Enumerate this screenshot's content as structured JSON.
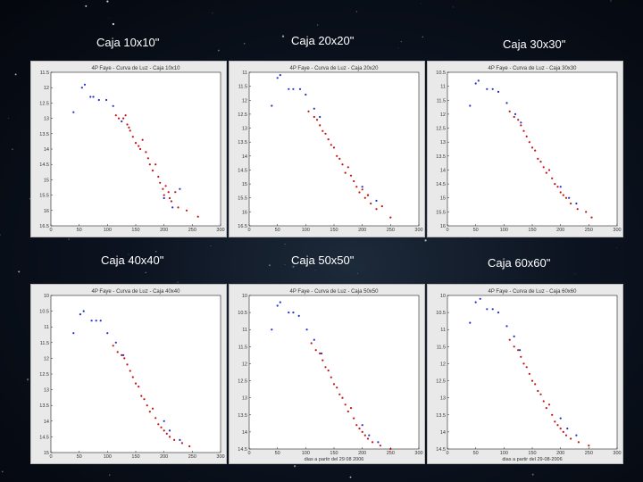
{
  "colors": {
    "blue": "#1f2fd0",
    "red": "#c41212",
    "axes_bg": "#ffffff",
    "frame_bg": "#e9e9e9"
  },
  "chart_data": [
    {
      "type": "scatter",
      "caption": "Caja 10x10\"",
      "title": "4P Faye - Curva de Luz - Caja 10x10",
      "xlabel": "",
      "xlim": [
        0,
        300
      ],
      "ylim": [
        11.5,
        16.5
      ],
      "y_inverted": true,
      "xticks": [
        0,
        50,
        100,
        150,
        200,
        250,
        300
      ],
      "yticks": [
        11.5,
        12,
        12.5,
        13,
        13.5,
        14,
        14.5,
        15,
        15.5,
        16,
        16.5
      ],
      "series": [
        {
          "color": "blue",
          "points": [
            [
              40,
              12.8
            ],
            [
              55,
              12.0
            ],
            [
              60,
              11.9
            ],
            [
              70,
              12.3
            ],
            [
              75,
              12.3
            ],
            [
              85,
              12.4
            ],
            [
              98,
              12.4
            ],
            [
              110,
              12.6
            ],
            [
              125,
              13.1
            ],
            [
              200,
              15.6
            ],
            [
              215,
              15.9
            ],
            [
              228,
              15.3
            ]
          ]
        },
        {
          "color": "red",
          "points": [
            [
              115,
              12.9
            ],
            [
              120,
              13.0
            ],
            [
              128,
              13.0
            ],
            [
              132,
              12.9
            ],
            [
              135,
              13.2
            ],
            [
              138,
              13.3
            ],
            [
              140,
              13.4
            ],
            [
              145,
              13.6
            ],
            [
              150,
              13.8
            ],
            [
              155,
              13.9
            ],
            [
              158,
              14.0
            ],
            [
              162,
              13.7
            ],
            [
              168,
              14.1
            ],
            [
              172,
              14.3
            ],
            [
              175,
              14.5
            ],
            [
              180,
              14.7
            ],
            [
              185,
              14.5
            ],
            [
              190,
              14.9
            ],
            [
              193,
              15.1
            ],
            [
              198,
              15.3
            ],
            [
              200,
              15.5
            ],
            [
              203,
              15.2
            ],
            [
              208,
              15.4
            ],
            [
              210,
              15.6
            ],
            [
              213,
              15.7
            ],
            [
              220,
              15.4
            ],
            [
              225,
              15.9
            ],
            [
              240,
              16.0
            ],
            [
              260,
              16.2
            ]
          ]
        }
      ]
    },
    {
      "type": "scatter",
      "caption": "Caja 20x20\"",
      "title": "4P Faye - Curva de Luz - Caja 20x20",
      "xlabel": "",
      "xlim": [
        0,
        300
      ],
      "ylim": [
        11,
        16.5
      ],
      "y_inverted": true,
      "xticks": [
        0,
        50,
        100,
        150,
        200,
        250,
        300
      ],
      "yticks": [
        11,
        11.5,
        12,
        12.5,
        13,
        13.5,
        14,
        14.5,
        15,
        15.5,
        16,
        16.5
      ],
      "series": [
        {
          "color": "blue",
          "points": [
            [
              40,
              12.2
            ],
            [
              50,
              11.2
            ],
            [
              55,
              11.1
            ],
            [
              70,
              11.6
            ],
            [
              78,
              11.6
            ],
            [
              90,
              11.6
            ],
            [
              100,
              11.8
            ],
            [
              115,
              12.3
            ],
            [
              125,
              12.6
            ],
            [
              200,
              15.1
            ],
            [
              210,
              15.4
            ],
            [
              225,
              15.6
            ]
          ]
        },
        {
          "color": "red",
          "points": [
            [
              105,
              12.4
            ],
            [
              115,
              12.6
            ],
            [
              120,
              12.7
            ],
            [
              125,
              12.9
            ],
            [
              130,
              13.1
            ],
            [
              135,
              13.2
            ],
            [
              140,
              13.4
            ],
            [
              145,
              13.6
            ],
            [
              150,
              13.7
            ],
            [
              155,
              14.0
            ],
            [
              160,
              14.1
            ],
            [
              165,
              14.3
            ],
            [
              170,
              14.6
            ],
            [
              175,
              14.4
            ],
            [
              180,
              14.7
            ],
            [
              185,
              14.9
            ],
            [
              190,
              15.1
            ],
            [
              195,
              15.3
            ],
            [
              200,
              15.2
            ],
            [
              205,
              15.5
            ],
            [
              210,
              15.4
            ],
            [
              215,
              15.7
            ],
            [
              225,
              15.9
            ],
            [
              235,
              15.8
            ],
            [
              250,
              16.2
            ]
          ]
        }
      ]
    },
    {
      "type": "scatter",
      "caption": "Caja 30x30\"",
      "title": "4P Faye - Curva de Luz - Caja 30x30",
      "xlabel": "",
      "xlim": [
        0,
        300
      ],
      "ylim": [
        10.5,
        16
      ],
      "y_inverted": true,
      "xticks": [
        0,
        50,
        100,
        150,
        200,
        250,
        300
      ],
      "yticks": [
        10.5,
        11,
        11.5,
        12,
        12.5,
        13,
        13.5,
        14,
        14.5,
        15,
        15.5,
        16
      ],
      "series": [
        {
          "color": "blue",
          "points": [
            [
              40,
              11.7
            ],
            [
              50,
              10.9
            ],
            [
              55,
              10.8
            ],
            [
              70,
              11.1
            ],
            [
              80,
              11.1
            ],
            [
              90,
              11.2
            ],
            [
              105,
              11.6
            ],
            [
              120,
              12.0
            ],
            [
              130,
              12.3
            ],
            [
              200,
              14.6
            ],
            [
              215,
              15.0
            ],
            [
              228,
              15.2
            ]
          ]
        },
        {
          "color": "red",
          "points": [
            [
              110,
              11.9
            ],
            [
              118,
              12.1
            ],
            [
              125,
              12.2
            ],
            [
              130,
              12.4
            ],
            [
              135,
              12.6
            ],
            [
              140,
              12.8
            ],
            [
              145,
              13.0
            ],
            [
              150,
              13.2
            ],
            [
              155,
              13.3
            ],
            [
              160,
              13.6
            ],
            [
              165,
              13.7
            ],
            [
              170,
              13.9
            ],
            [
              175,
              14.1
            ],
            [
              180,
              14.0
            ],
            [
              185,
              14.3
            ],
            [
              190,
              14.5
            ],
            [
              195,
              14.6
            ],
            [
              200,
              14.8
            ],
            [
              205,
              14.9
            ],
            [
              210,
              15.0
            ],
            [
              218,
              15.2
            ],
            [
              230,
              15.4
            ],
            [
              245,
              15.5
            ],
            [
              255,
              15.7
            ]
          ]
        }
      ]
    },
    {
      "type": "scatter",
      "caption": "Caja 40x40\"",
      "title": "4P Faye - Curva de Luz - Caja 40x40",
      "xlabel": "",
      "xlim": [
        0,
        300
      ],
      "ylim": [
        10,
        15
      ],
      "y_inverted": true,
      "xticks": [
        0,
        50,
        100,
        150,
        200,
        250,
        300
      ],
      "yticks": [
        10,
        10.5,
        11,
        11.5,
        12,
        12.5,
        13,
        13.5,
        14,
        14.5,
        15
      ],
      "series": [
        {
          "color": "blue",
          "points": [
            [
              40,
              11.2
            ],
            [
              52,
              10.6
            ],
            [
              58,
              10.5
            ],
            [
              72,
              10.8
            ],
            [
              80,
              10.8
            ],
            [
              88,
              10.8
            ],
            [
              100,
              11.2
            ],
            [
              115,
              11.5
            ],
            [
              128,
              11.9
            ],
            [
              200,
              14.0
            ],
            [
              210,
              14.3
            ],
            [
              228,
              14.6
            ]
          ]
        },
        {
          "color": "red",
          "points": [
            [
              110,
              11.6
            ],
            [
              118,
              11.8
            ],
            [
              125,
              11.9
            ],
            [
              130,
              12.0
            ],
            [
              135,
              12.2
            ],
            [
              140,
              12.4
            ],
            [
              145,
              12.6
            ],
            [
              150,
              12.8
            ],
            [
              155,
              12.9
            ],
            [
              160,
              13.2
            ],
            [
              165,
              13.3
            ],
            [
              170,
              13.5
            ],
            [
              175,
              13.7
            ],
            [
              180,
              13.6
            ],
            [
              185,
              13.9
            ],
            [
              190,
              14.1
            ],
            [
              195,
              14.2
            ],
            [
              200,
              14.3
            ],
            [
              205,
              14.4
            ],
            [
              210,
              14.5
            ],
            [
              218,
              14.6
            ],
            [
              232,
              14.7
            ],
            [
              245,
              14.8
            ]
          ]
        }
      ]
    },
    {
      "type": "scatter",
      "caption": "Caja 50x50\"",
      "title": "4P Faye - Curva de Luz - Caja 50x50",
      "xlabel": "dias a partir del 29 08 2006",
      "xlim": [
        0,
        300
      ],
      "ylim": [
        10,
        14.5
      ],
      "y_inverted": true,
      "xticks": [
        0,
        50,
        100,
        150,
        200,
        250,
        300
      ],
      "yticks": [
        10,
        10.5,
        11,
        11.5,
        12,
        12.5,
        13,
        13.5,
        14,
        14.5
      ],
      "series": [
        {
          "color": "blue",
          "points": [
            [
              40,
              11.0
            ],
            [
              50,
              10.3
            ],
            [
              55,
              10.2
            ],
            [
              70,
              10.5
            ],
            [
              78,
              10.5
            ],
            [
              88,
              10.6
            ],
            [
              102,
              11.0
            ],
            [
              115,
              11.3
            ],
            [
              128,
              11.7
            ],
            [
              200,
              13.8
            ],
            [
              212,
              14.1
            ],
            [
              228,
              14.3
            ]
          ]
        },
        {
          "color": "red",
          "points": [
            [
              110,
              11.4
            ],
            [
              118,
              11.6
            ],
            [
              125,
              11.7
            ],
            [
              130,
              11.9
            ],
            [
              135,
              12.1
            ],
            [
              140,
              12.2
            ],
            [
              145,
              12.4
            ],
            [
              150,
              12.6
            ],
            [
              155,
              12.7
            ],
            [
              160,
              12.9
            ],
            [
              165,
              13.0
            ],
            [
              170,
              13.2
            ],
            [
              175,
              13.4
            ],
            [
              180,
              13.3
            ],
            [
              185,
              13.6
            ],
            [
              190,
              13.8
            ],
            [
              195,
              13.9
            ],
            [
              200,
              14.0
            ],
            [
              205,
              14.1
            ],
            [
              210,
              14.2
            ],
            [
              218,
              14.3
            ],
            [
              232,
              14.4
            ],
            [
              250,
              14.5
            ]
          ]
        }
      ]
    },
    {
      "type": "scatter",
      "caption": "Caja 60x60\"",
      "title": "4P Faye - Curva de Luz - Caja 60x60",
      "xlabel": "dias a partir del 29-08-2006",
      "xlim": [
        0,
        300
      ],
      "ylim": [
        10,
        14.5
      ],
      "y_inverted": true,
      "xticks": [
        0,
        50,
        100,
        150,
        200,
        250,
        300
      ],
      "yticks": [
        10,
        10.5,
        11,
        11.5,
        12,
        12.5,
        13,
        13.5,
        14,
        14.5
      ],
      "series": [
        {
          "color": "blue",
          "points": [
            [
              40,
              10.8
            ],
            [
              50,
              10.2
            ],
            [
              58,
              10.1
            ],
            [
              70,
              10.4
            ],
            [
              80,
              10.4
            ],
            [
              90,
              10.5
            ],
            [
              105,
              10.9
            ],
            [
              118,
              11.2
            ],
            [
              128,
              11.6
            ],
            [
              200,
              13.6
            ],
            [
              212,
              13.9
            ],
            [
              228,
              14.1
            ]
          ]
        },
        {
          "color": "red",
          "points": [
            [
              110,
              11.3
            ],
            [
              118,
              11.5
            ],
            [
              125,
              11.6
            ],
            [
              130,
              11.8
            ],
            [
              135,
              12.0
            ],
            [
              140,
              12.1
            ],
            [
              145,
              12.3
            ],
            [
              150,
              12.5
            ],
            [
              155,
              12.6
            ],
            [
              160,
              12.8
            ],
            [
              165,
              12.9
            ],
            [
              170,
              13.1
            ],
            [
              175,
              13.3
            ],
            [
              180,
              13.2
            ],
            [
              185,
              13.5
            ],
            [
              190,
              13.7
            ],
            [
              195,
              13.8
            ],
            [
              200,
              13.9
            ],
            [
              205,
              14.0
            ],
            [
              210,
              14.1
            ],
            [
              218,
              14.2
            ],
            [
              232,
              14.3
            ],
            [
              250,
              14.4
            ]
          ]
        }
      ]
    }
  ]
}
